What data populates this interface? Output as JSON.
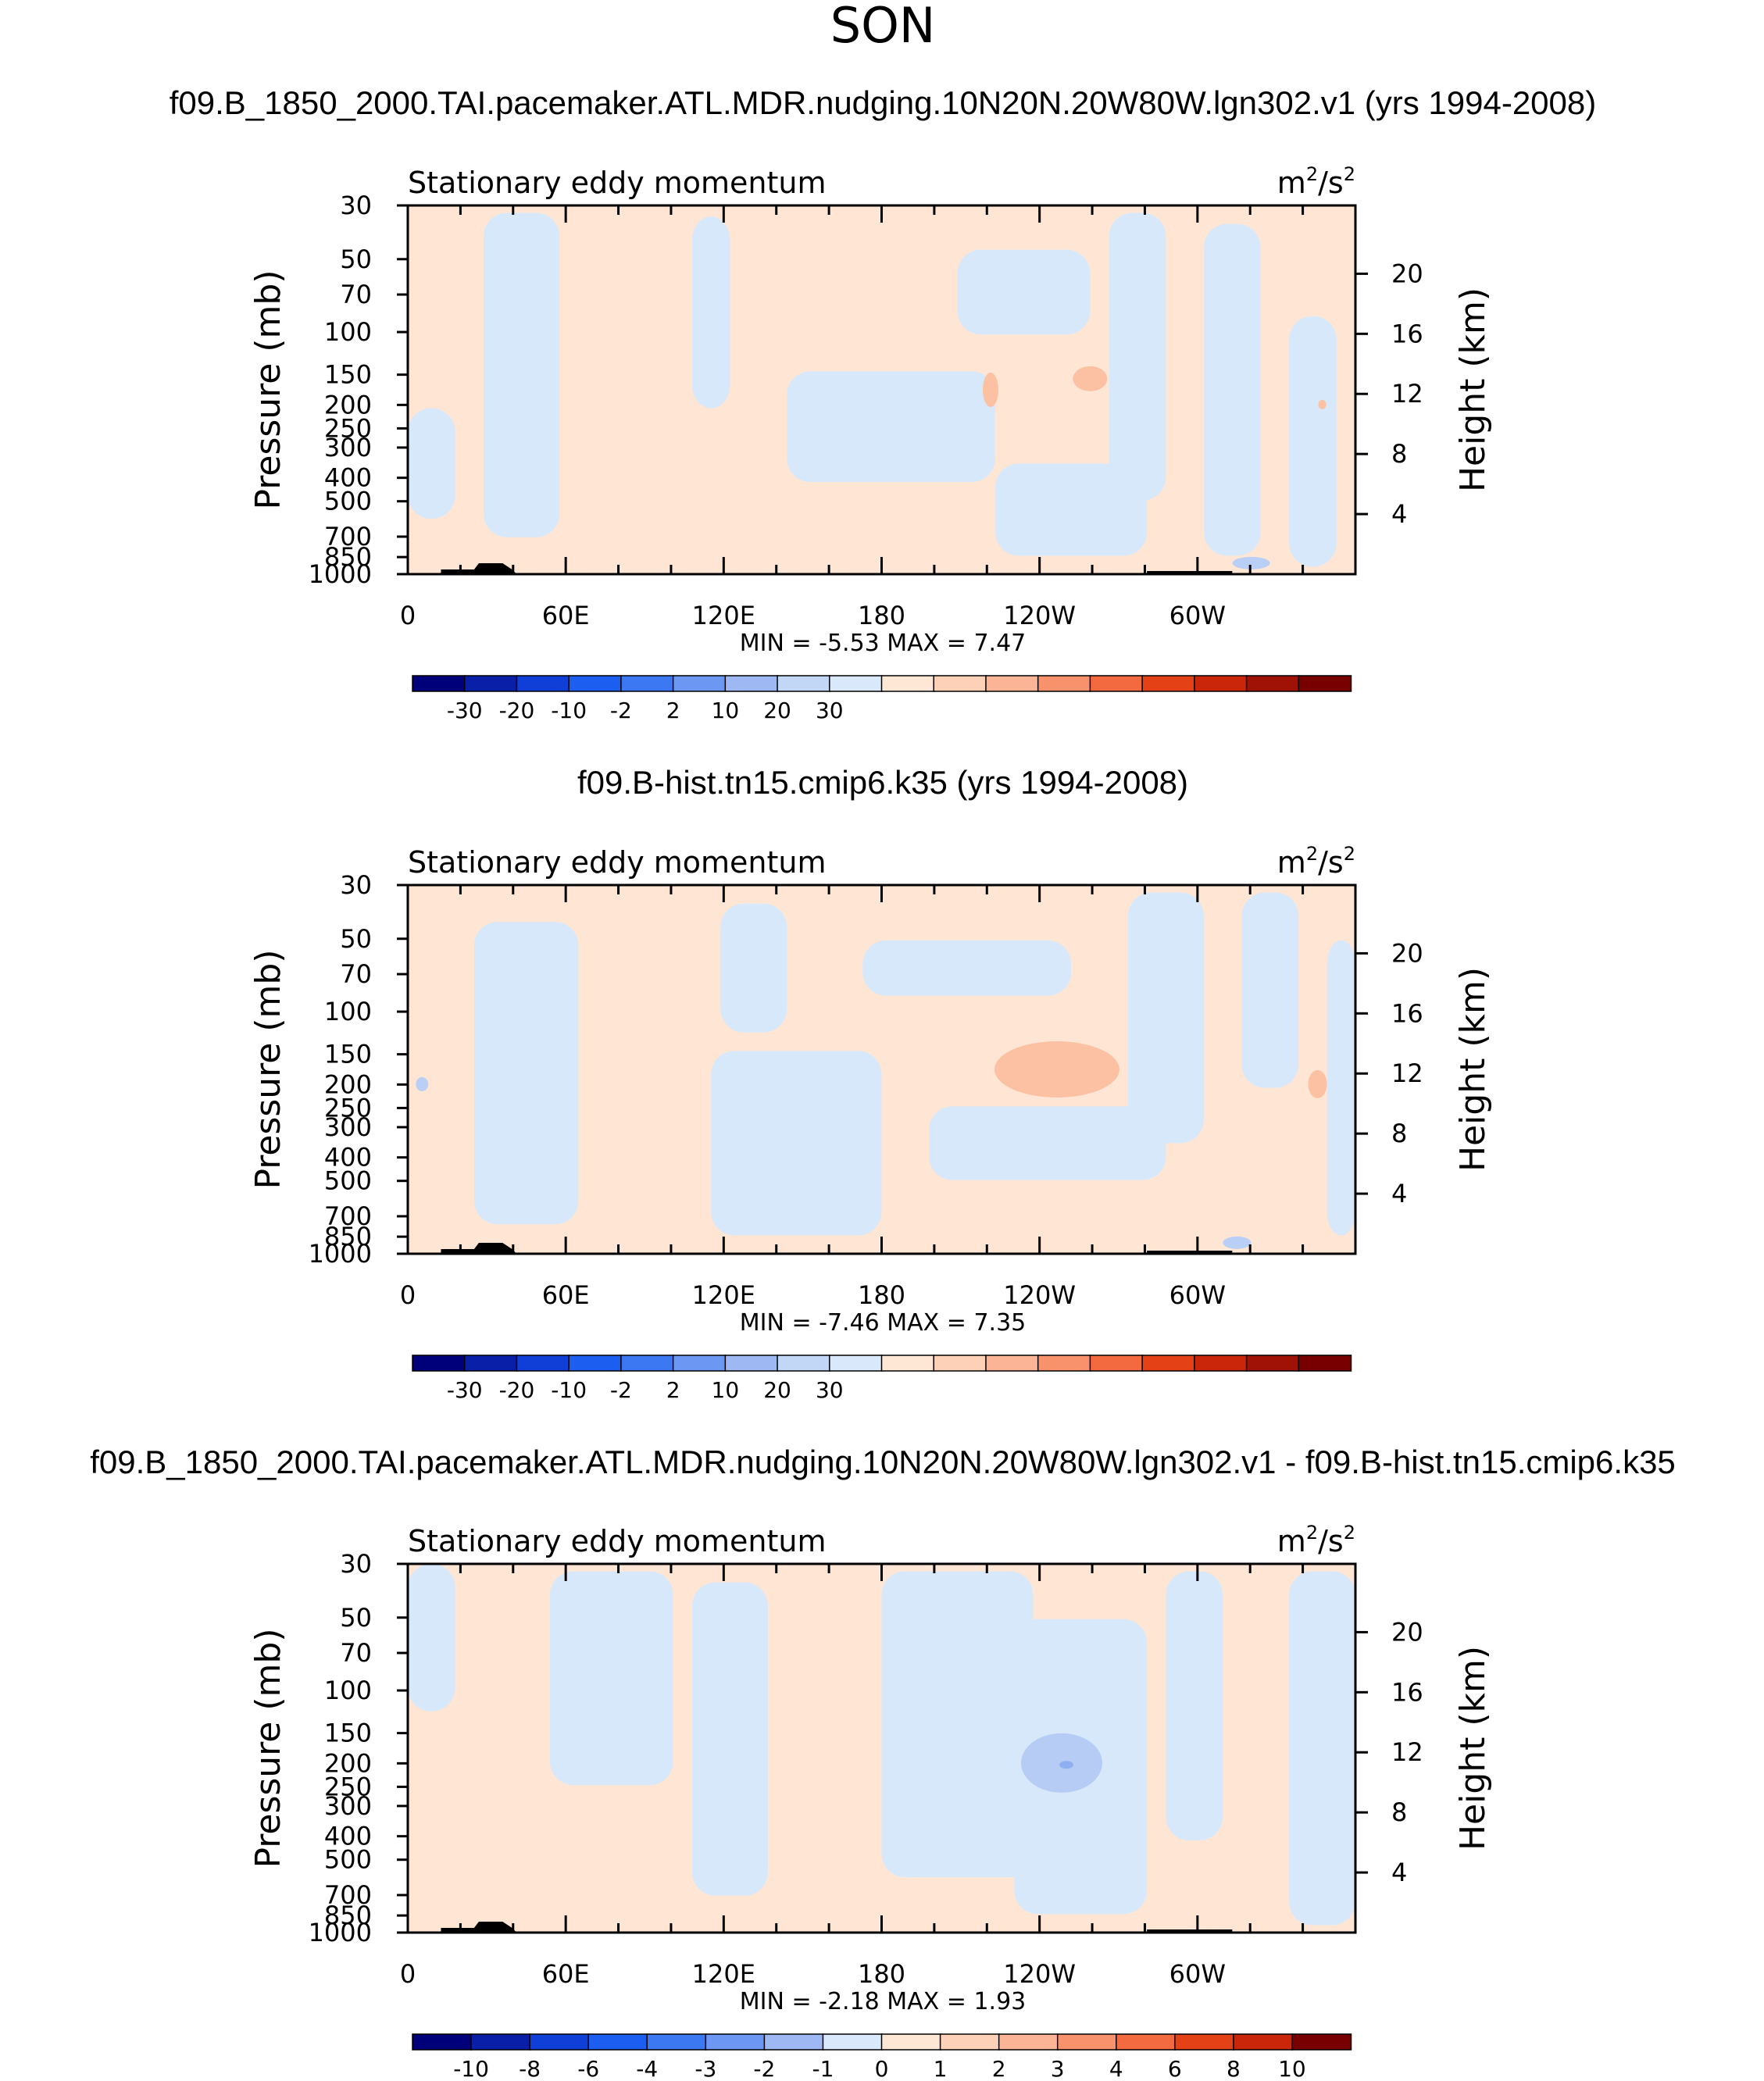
{
  "figure": {
    "season": "SON"
  },
  "panels": [
    {
      "title": "f09.B_1850_2000.TAI.pacemaker.ATL.MDR.nudging.10N20N.20W80W.lgn302.v1 (yrs 1994-2008)",
      "left_label": "Stationary eddy momentum",
      "units_base": "m",
      "units_mid": "/s",
      "units_sup": "2",
      "y_label": "Pressure (mb)",
      "y2_label": "Height (km)",
      "stats_label": "MIN =   -5.53  MAX =    7.47"
    },
    {
      "title": "f09.B-hist.tn15.cmip6.k35 (yrs 1994-2008)",
      "left_label": "Stationary eddy momentum",
      "units_base": "m",
      "units_mid": "/s",
      "units_sup": "2",
      "y_label": "Pressure (mb)",
      "y2_label": "Height (km)",
      "stats_label": "MIN =   -7.46  MAX =    7.35"
    },
    {
      "title": "f09.B_1850_2000.TAI.pacemaker.ATL.MDR.nudging.10N20N.20W80W.lgn302.v1 - f09.B-hist.tn15.cmip6.k35",
      "left_label": "Stationary eddy momentum",
      "units_base": "m",
      "units_mid": "/s",
      "units_sup": "2",
      "y_label": "Pressure (mb)",
      "y2_label": "Height (km)",
      "stats_label": "MIN =   -2.18  MAX =    1.93"
    }
  ],
  "chart_data": [
    {
      "type": "heatmap",
      "variable": "Stationary eddy momentum",
      "units": "m2/s2",
      "x_ticks": [
        "0",
        "60E",
        "120E",
        "180",
        "120W",
        "60W"
      ],
      "x_tick_values": [
        0,
        60,
        120,
        180,
        240,
        300
      ],
      "x_range": [
        0,
        360
      ],
      "y_ticks": [
        "30",
        "50",
        "70",
        "100",
        "150",
        "200",
        "250",
        "300",
        "400",
        "500",
        "700",
        "850",
        "1000"
      ],
      "y_range": [
        1000,
        30
      ],
      "y2_ticks": [
        "20",
        "16",
        "12",
        "8",
        "4"
      ],
      "min": -5.53,
      "max": 7.47,
      "colorbar_labels": [
        "-30",
        "-20",
        "-10",
        "-2",
        "2",
        "10",
        "20",
        "30"
      ],
      "colorbar_colors": [
        "#00007a",
        "#0a1fa8",
        "#0f3fd6",
        "#1c5ef0",
        "#3b78f2",
        "#6c97f2",
        "#9db8f2",
        "#c2d7f5",
        "#d9e9fb",
        "#ffe7d6",
        "#fdd0b8",
        "#fbb496",
        "#f8926c",
        "#f46a40",
        "#e44216",
        "#c9260a",
        "#a01206",
        "#780000"
      ]
    },
    {
      "type": "heatmap",
      "variable": "Stationary eddy momentum",
      "units": "m2/s2",
      "x_ticks": [
        "0",
        "60E",
        "120E",
        "180",
        "120W",
        "60W"
      ],
      "x_tick_values": [
        0,
        60,
        120,
        180,
        240,
        300
      ],
      "x_range": [
        0,
        360
      ],
      "y_ticks": [
        "30",
        "50",
        "70",
        "100",
        "150",
        "200",
        "250",
        "300",
        "400",
        "500",
        "700",
        "850",
        "1000"
      ],
      "y_range": [
        1000,
        30
      ],
      "y2_ticks": [
        "20",
        "16",
        "12",
        "8",
        "4"
      ],
      "min": -7.46,
      "max": 7.35,
      "colorbar_labels": [
        "-30",
        "-20",
        "-10",
        "-2",
        "2",
        "10",
        "20",
        "30"
      ],
      "colorbar_colors": [
        "#00007a",
        "#0a1fa8",
        "#0f3fd6",
        "#1c5ef0",
        "#3b78f2",
        "#6c97f2",
        "#9db8f2",
        "#c2d7f5",
        "#d9e9fb",
        "#ffe7d6",
        "#fdd0b8",
        "#fbb496",
        "#f8926c",
        "#f46a40",
        "#e44216",
        "#c9260a",
        "#a01206",
        "#780000"
      ]
    },
    {
      "type": "heatmap",
      "variable": "Stationary eddy momentum",
      "units": "m2/s2",
      "x_ticks": [
        "0",
        "60E",
        "120E",
        "180",
        "120W",
        "60W"
      ],
      "x_tick_values": [
        0,
        60,
        120,
        180,
        240,
        300
      ],
      "x_range": [
        0,
        360
      ],
      "y_ticks": [
        "30",
        "50",
        "70",
        "100",
        "150",
        "200",
        "250",
        "300",
        "400",
        "500",
        "700",
        "850",
        "1000"
      ],
      "y_range": [
        1000,
        30
      ],
      "y2_ticks": [
        "20",
        "16",
        "12",
        "8",
        "4"
      ],
      "min": -2.18,
      "max": 1.93,
      "colorbar_labels": [
        "-10",
        "-8",
        "-6",
        "-4",
        "-3",
        "-2",
        "-1",
        "0",
        "1",
        "2",
        "3",
        "4",
        "6",
        "8",
        "10"
      ],
      "colorbar_colors": [
        "#00007a",
        "#0a1fa8",
        "#0f3fd6",
        "#1c5ef0",
        "#3b78f2",
        "#6c97f2",
        "#9db8f2",
        "#d9e9fb",
        "#ffe7d6",
        "#fdd0b8",
        "#fbb496",
        "#f8926c",
        "#f46a40",
        "#e44216",
        "#c9260a",
        "#780000"
      ]
    }
  ]
}
